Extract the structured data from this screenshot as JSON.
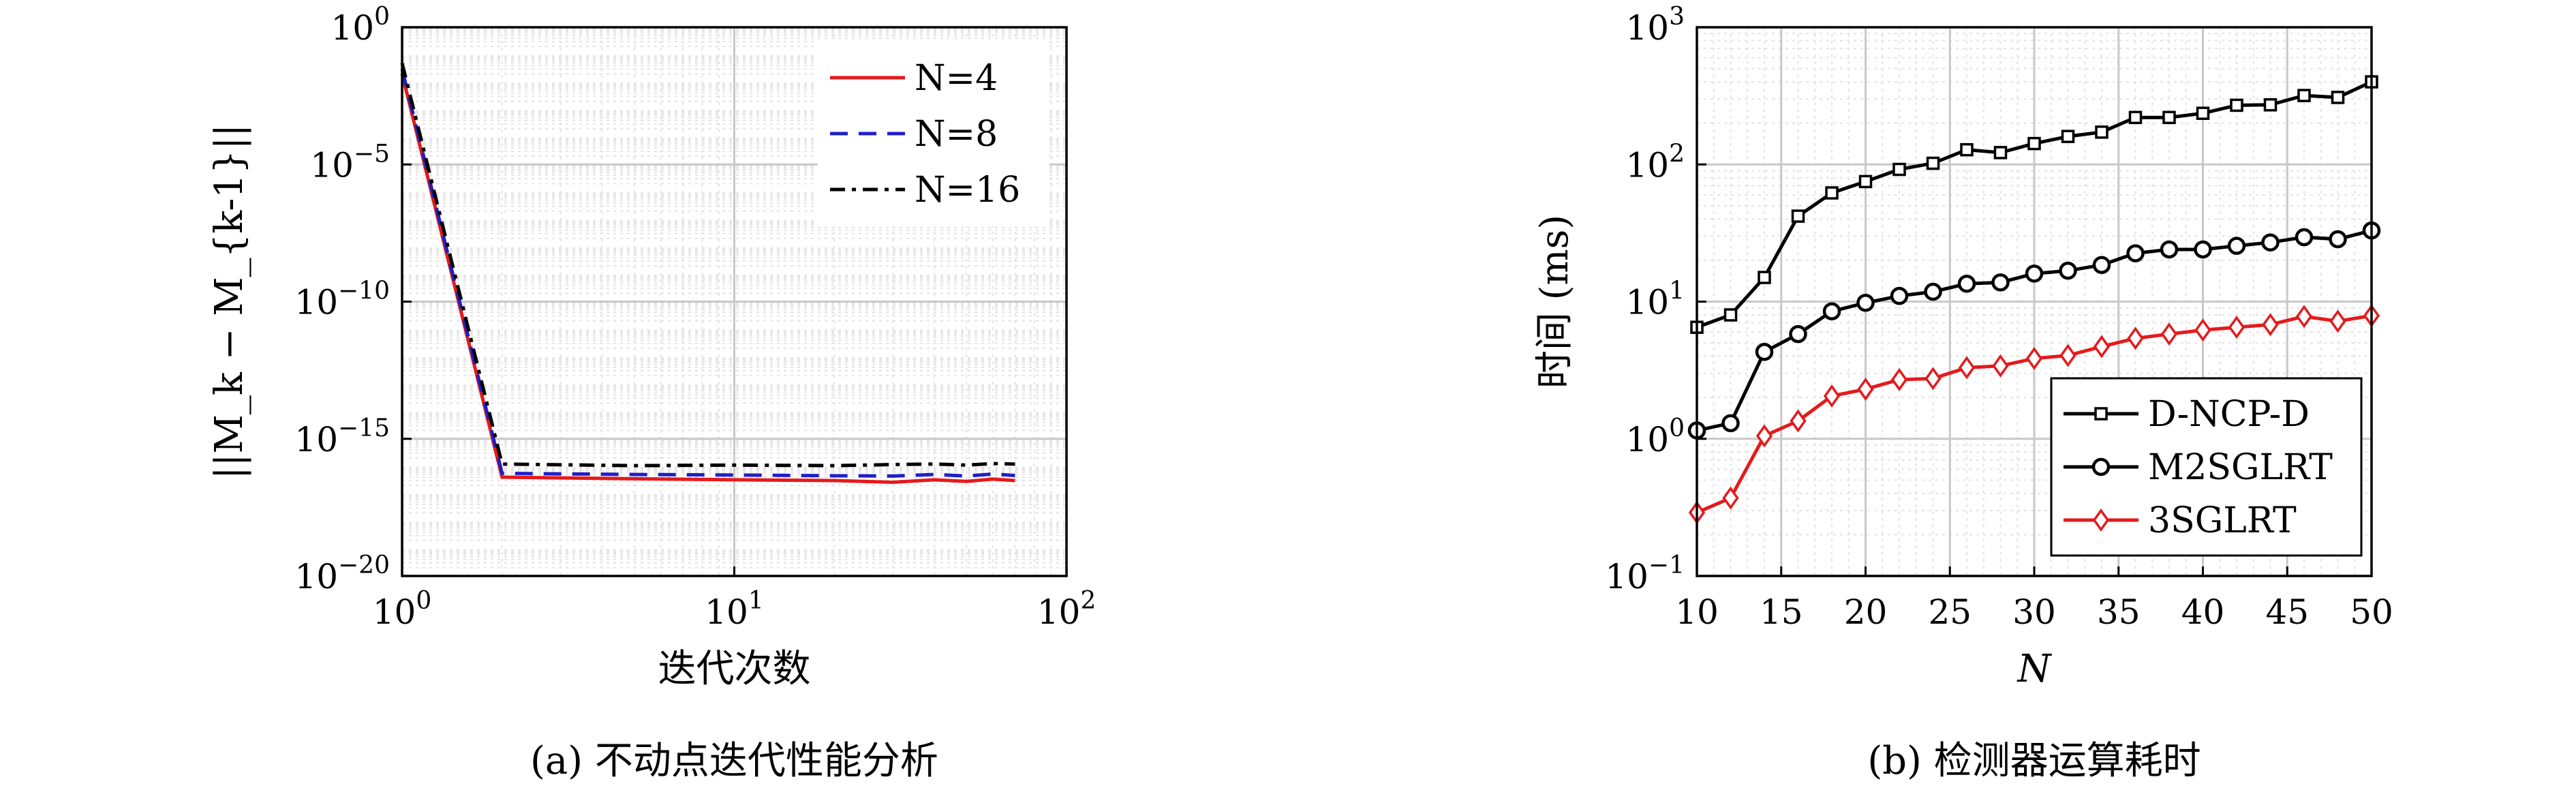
{
  "chart_data": [
    {
      "type": "line",
      "caption": "(a) 不动点迭代性能分析",
      "xlabel": "迭代次数",
      "ylabel": "||M_k − M_{k-1}||",
      "xscale": "log",
      "yscale": "log",
      "xlim": [
        1,
        100
      ],
      "ylim": [
        1e-20,
        1
      ],
      "xticks": [
        {
          "value": 1,
          "label": "10",
          "exp": "0"
        },
        {
          "value": 10,
          "label": "10",
          "exp": "1"
        },
        {
          "value": 100,
          "label": "10",
          "exp": "2"
        }
      ],
      "yticks": [
        {
          "value": 1,
          "label": "10",
          "exp": "0"
        },
        {
          "value": 1e-05,
          "label": "10",
          "exp": "−5"
        },
        {
          "value": 1e-10,
          "label": "10",
          "exp": "−10"
        },
        {
          "value": 1e-15,
          "label": "10",
          "exp": "−15"
        },
        {
          "value": 1e-20,
          "label": "10",
          "exp": "−20"
        }
      ],
      "grid": true,
      "legend_position": "top-right",
      "series": [
        {
          "name": "N=4",
          "color": "#e41a1c",
          "style": "solid",
          "x": [
            1,
            2,
            5,
            10,
            20,
            30,
            40,
            50,
            60,
            70
          ],
          "y": [
            0.02,
            4e-17,
            3.5e-17,
            3.2e-17,
            3e-17,
            2.6e-17,
            3.2e-17,
            2.8e-17,
            3.4e-17,
            3e-17
          ]
        },
        {
          "name": "N=8",
          "color": "#1f1fc8",
          "style": "dashed",
          "x": [
            1,
            2,
            5,
            10,
            20,
            30,
            40,
            50,
            60,
            70
          ],
          "y": [
            0.03,
            5.5e-17,
            5e-17,
            4.8e-17,
            4.5e-17,
            4.4e-17,
            5e-17,
            4.4e-17,
            5.2e-17,
            4.6e-17
          ]
        },
        {
          "name": "N=16",
          "color": "#000000",
          "style": "dashdot",
          "x": [
            1,
            2,
            5,
            10,
            20,
            30,
            40,
            50,
            60,
            70
          ],
          "y": [
            0.05,
            1.2e-16,
            1.05e-16,
            1.1e-16,
            1.05e-16,
            1.15e-16,
            1.2e-16,
            1.1e-16,
            1.25e-16,
            1.2e-16
          ]
        }
      ]
    },
    {
      "type": "line",
      "caption": "(b) 检测器运算耗时",
      "xlabel": "N",
      "ylabel": "时间 (ms)",
      "xscale": "linear",
      "yscale": "log",
      "xlim": [
        10,
        50
      ],
      "ylim": [
        0.1,
        1000
      ],
      "xticks": [
        {
          "value": 10,
          "label": "10"
        },
        {
          "value": 15,
          "label": "15"
        },
        {
          "value": 20,
          "label": "20"
        },
        {
          "value": 25,
          "label": "25"
        },
        {
          "value": 30,
          "label": "30"
        },
        {
          "value": 35,
          "label": "35"
        },
        {
          "value": 40,
          "label": "40"
        },
        {
          "value": 45,
          "label": "45"
        },
        {
          "value": 50,
          "label": "50"
        }
      ],
      "yticks": [
        {
          "value": 0.1,
          "label": "10",
          "exp": "−1"
        },
        {
          "value": 1,
          "label": "10",
          "exp": "0"
        },
        {
          "value": 10,
          "label": "10",
          "exp": "1"
        },
        {
          "value": 100,
          "label": "10",
          "exp": "2"
        },
        {
          "value": 1000,
          "label": "10",
          "exp": "3"
        }
      ],
      "grid": true,
      "legend_position": "bottom-right",
      "x": [
        10,
        12,
        14,
        16,
        18,
        20,
        22,
        24,
        26,
        28,
        30,
        32,
        34,
        36,
        38,
        40,
        42,
        44,
        46,
        48,
        50
      ],
      "series": [
        {
          "name": "D-NCP-D",
          "color": "#000000",
          "marker": "square",
          "values": [
            6.5,
            8,
            15,
            42,
            62,
            75,
            92,
            102,
            128,
            122,
            142,
            160,
            172,
            220,
            220,
            236,
            270,
            272,
            318,
            308,
            400
          ]
        },
        {
          "name": "M2SGLRT",
          "color": "#000000",
          "marker": "circle",
          "values": [
            1.15,
            1.3,
            4.3,
            5.8,
            8.5,
            9.8,
            11,
            11.8,
            13.5,
            13.8,
            16,
            16.8,
            18.5,
            22.5,
            24,
            24,
            25.5,
            27,
            29.5,
            28.5,
            33
          ]
        },
        {
          "name": "3SGLRT",
          "color": "#e41a1c",
          "marker": "diamond",
          "values": [
            0.29,
            0.37,
            1.05,
            1.35,
            2.05,
            2.3,
            2.7,
            2.75,
            3.3,
            3.4,
            3.85,
            4.05,
            4.7,
            5.4,
            5.8,
            6.2,
            6.5,
            6.8,
            7.8,
            7.2,
            7.9
          ]
        }
      ]
    }
  ]
}
